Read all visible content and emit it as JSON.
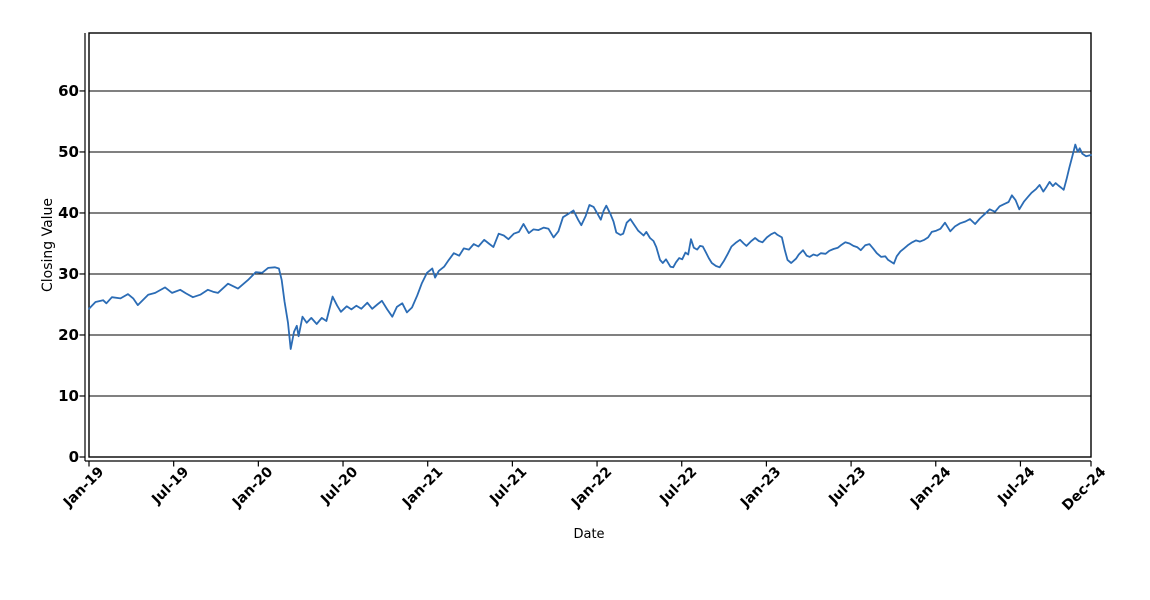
{
  "chart_data": {
    "type": "line",
    "title": "",
    "xlabel": "Date",
    "ylabel": "Closing Value",
    "grid": "horizontal",
    "legend": "none",
    "background_color": "#ffffff",
    "axis_color": "#000000",
    "line_color": "#2b6cb5",
    "ylim": [
      0,
      69.5
    ],
    "y_ticks": [
      0,
      10,
      20,
      30,
      40,
      50,
      60
    ],
    "xlim_months_from_jan2019": [
      0,
      71
    ],
    "x_ticks": [
      {
        "label": "Jan-19",
        "t": 0
      },
      {
        "label": "Jul-19",
        "t": 6
      },
      {
        "label": "Jan-20",
        "t": 12
      },
      {
        "label": "Jul-20",
        "t": 18
      },
      {
        "label": "Jan-21",
        "t": 24
      },
      {
        "label": "Jul-21",
        "t": 30
      },
      {
        "label": "Jan-22",
        "t": 36
      },
      {
        "label": "Jul-22",
        "t": 42
      },
      {
        "label": "Jan-23",
        "t": 48
      },
      {
        "label": "Jul-23",
        "t": 54
      },
      {
        "label": "Jan-24",
        "t": 60
      },
      {
        "label": "Jul-24",
        "t": 66
      },
      {
        "label": "Dec-24",
        "t": 71
      }
    ],
    "series": [
      {
        "name": "Closing Value",
        "points": [
          [
            "2019-01-01",
            24.3
          ],
          [
            "2019-01-15",
            25.4
          ],
          [
            "2019-02-01",
            25.7
          ],
          [
            "2019-02-08",
            25.2
          ],
          [
            "2019-02-20",
            26.2
          ],
          [
            "2019-03-08",
            26.0
          ],
          [
            "2019-03-24",
            26.7
          ],
          [
            "2019-04-05",
            26.0
          ],
          [
            "2019-04-15",
            24.9
          ],
          [
            "2019-05-07",
            26.6
          ],
          [
            "2019-05-22",
            26.9
          ],
          [
            "2019-06-13",
            27.8
          ],
          [
            "2019-06-28",
            26.9
          ],
          [
            "2019-07-15",
            27.4
          ],
          [
            "2019-07-28",
            26.8
          ],
          [
            "2019-08-12",
            26.2
          ],
          [
            "2019-08-28",
            26.6
          ],
          [
            "2019-09-14",
            27.4
          ],
          [
            "2019-09-25",
            27.1
          ],
          [
            "2019-10-05",
            26.9
          ],
          [
            "2019-10-27",
            28.4
          ],
          [
            "2019-11-18",
            27.6
          ],
          [
            "2019-12-09",
            29.0
          ],
          [
            "2019-12-26",
            30.3
          ],
          [
            "2020-01-09",
            30.2
          ],
          [
            "2020-01-22",
            31.0
          ],
          [
            "2020-02-06",
            31.1
          ],
          [
            "2020-02-15",
            30.9
          ],
          [
            "2020-02-21",
            29.0
          ],
          [
            "2020-02-27",
            25.5
          ],
          [
            "2020-03-04",
            22.0
          ],
          [
            "2020-03-10",
            17.7
          ],
          [
            "2020-03-17",
            20.5
          ],
          [
            "2020-03-23",
            21.5
          ],
          [
            "2020-03-27",
            19.8
          ],
          [
            "2020-04-05",
            23.0
          ],
          [
            "2020-04-14",
            22.0
          ],
          [
            "2020-04-24",
            22.8
          ],
          [
            "2020-05-05",
            21.8
          ],
          [
            "2020-05-16",
            22.8
          ],
          [
            "2020-05-26",
            22.3
          ],
          [
            "2020-06-09",
            26.3
          ],
          [
            "2020-06-19",
            24.8
          ],
          [
            "2020-06-27",
            23.8
          ],
          [
            "2020-07-09",
            24.7
          ],
          [
            "2020-07-19",
            24.2
          ],
          [
            "2020-07-30",
            24.8
          ],
          [
            "2020-08-10",
            24.3
          ],
          [
            "2020-08-23",
            25.3
          ],
          [
            "2020-09-03",
            24.3
          ],
          [
            "2020-09-14",
            25.0
          ],
          [
            "2020-09-24",
            25.6
          ],
          [
            "2020-10-05",
            24.2
          ],
          [
            "2020-10-16",
            23.0
          ],
          [
            "2020-10-26",
            24.6
          ],
          [
            "2020-11-07",
            25.2
          ],
          [
            "2020-11-17",
            23.7
          ],
          [
            "2020-11-28",
            24.5
          ],
          [
            "2020-12-09",
            26.5
          ],
          [
            "2020-12-19",
            28.5
          ],
          [
            "2020-12-30",
            30.2
          ],
          [
            "2021-01-11",
            30.9
          ],
          [
            "2021-01-17",
            29.4
          ],
          [
            "2021-01-25",
            30.5
          ],
          [
            "2021-02-06",
            31.2
          ],
          [
            "2021-02-16",
            32.3
          ],
          [
            "2021-02-27",
            33.4
          ],
          [
            "2021-03-08",
            33.0
          ],
          [
            "2021-03-18",
            34.2
          ],
          [
            "2021-03-29",
            34.0
          ],
          [
            "2021-04-09",
            34.9
          ],
          [
            "2021-04-19",
            34.5
          ],
          [
            "2021-05-01",
            35.6
          ],
          [
            "2021-05-11",
            35.0
          ],
          [
            "2021-05-21",
            34.4
          ],
          [
            "2021-06-02",
            36.6
          ],
          [
            "2021-06-13",
            36.3
          ],
          [
            "2021-06-23",
            35.7
          ],
          [
            "2021-07-04",
            36.6
          ],
          [
            "2021-07-15",
            36.9
          ],
          [
            "2021-07-25",
            38.2
          ],
          [
            "2021-08-06",
            36.7
          ],
          [
            "2021-08-16",
            37.3
          ],
          [
            "2021-08-27",
            37.2
          ],
          [
            "2021-09-08",
            37.6
          ],
          [
            "2021-09-18",
            37.4
          ],
          [
            "2021-09-29",
            36.0
          ],
          [
            "2021-10-09",
            37.0
          ],
          [
            "2021-10-19",
            39.3
          ],
          [
            "2021-11-01",
            39.9
          ],
          [
            "2021-11-11",
            40.4
          ],
          [
            "2021-11-21",
            38.9
          ],
          [
            "2021-11-28",
            38.0
          ],
          [
            "2021-12-07",
            39.5
          ],
          [
            "2021-12-15",
            41.3
          ],
          [
            "2021-12-24",
            41.0
          ],
          [
            "2021-12-30",
            40.2
          ],
          [
            "2022-01-09",
            38.9
          ],
          [
            "2022-01-15",
            40.3
          ],
          [
            "2022-01-21",
            41.2
          ],
          [
            "2022-01-30",
            39.8
          ],
          [
            "2022-02-06",
            38.6
          ],
          [
            "2022-02-12",
            36.8
          ],
          [
            "2022-02-21",
            36.4
          ],
          [
            "2022-02-27",
            36.6
          ],
          [
            "2022-03-04",
            38.4
          ],
          [
            "2022-03-12",
            39.0
          ],
          [
            "2022-03-21",
            38.0
          ],
          [
            "2022-03-29",
            37.1
          ],
          [
            "2022-04-10",
            36.3
          ],
          [
            "2022-04-16",
            36.9
          ],
          [
            "2022-04-24",
            35.9
          ],
          [
            "2022-05-01",
            35.4
          ],
          [
            "2022-05-07",
            34.4
          ],
          [
            "2022-05-15",
            32.3
          ],
          [
            "2022-05-21",
            31.8
          ],
          [
            "2022-05-28",
            32.4
          ],
          [
            "2022-06-07",
            31.2
          ],
          [
            "2022-06-13",
            31.1
          ],
          [
            "2022-06-19",
            31.9
          ],
          [
            "2022-06-26",
            32.6
          ],
          [
            "2022-07-02",
            32.4
          ],
          [
            "2022-07-09",
            33.5
          ],
          [
            "2022-07-15",
            33.2
          ],
          [
            "2022-07-21",
            35.7
          ],
          [
            "2022-07-27",
            34.3
          ],
          [
            "2022-08-04",
            34.0
          ],
          [
            "2022-08-10",
            34.6
          ],
          [
            "2022-08-16",
            34.5
          ],
          [
            "2022-08-23",
            33.5
          ],
          [
            "2022-08-29",
            32.6
          ],
          [
            "2022-09-05",
            31.8
          ],
          [
            "2022-09-14",
            31.3
          ],
          [
            "2022-09-22",
            31.1
          ],
          [
            "2022-10-01",
            32.2
          ],
          [
            "2022-10-09",
            33.3
          ],
          [
            "2022-10-17",
            34.5
          ],
          [
            "2022-10-26",
            35.1
          ],
          [
            "2022-11-05",
            35.6
          ],
          [
            "2022-11-13",
            35.0
          ],
          [
            "2022-11-19",
            34.6
          ],
          [
            "2022-11-28",
            35.3
          ],
          [
            "2022-12-07",
            35.9
          ],
          [
            "2022-12-15",
            35.4
          ],
          [
            "2022-12-23",
            35.2
          ],
          [
            "2023-01-02",
            36.0
          ],
          [
            "2023-01-11",
            36.5
          ],
          [
            "2023-01-19",
            36.8
          ],
          [
            "2023-01-25",
            36.4
          ],
          [
            "2023-02-04",
            36.0
          ],
          [
            "2023-02-10",
            34.0
          ],
          [
            "2023-02-16",
            32.3
          ],
          [
            "2023-02-24",
            31.8
          ],
          [
            "2023-03-04",
            32.5
          ],
          [
            "2023-03-10",
            33.2
          ],
          [
            "2023-03-19",
            33.9
          ],
          [
            "2023-03-27",
            33.0
          ],
          [
            "2023-04-03",
            32.8
          ],
          [
            "2023-04-11",
            33.2
          ],
          [
            "2023-04-19",
            33.0
          ],
          [
            "2023-04-27",
            33.4
          ],
          [
            "2023-05-07",
            33.3
          ],
          [
            "2023-05-15",
            33.8
          ],
          [
            "2023-05-24",
            34.1
          ],
          [
            "2023-06-03",
            34.3
          ],
          [
            "2023-06-11",
            34.8
          ],
          [
            "2023-06-19",
            35.2
          ],
          [
            "2023-06-28",
            35.0
          ],
          [
            "2023-07-06",
            34.6
          ],
          [
            "2023-07-14",
            34.4
          ],
          [
            "2023-07-22",
            33.9
          ],
          [
            "2023-08-01",
            34.7
          ],
          [
            "2023-08-10",
            34.9
          ],
          [
            "2023-08-18",
            34.2
          ],
          [
            "2023-08-26",
            33.4
          ],
          [
            "2023-09-05",
            32.8
          ],
          [
            "2023-09-14",
            32.9
          ],
          [
            "2023-09-20",
            32.3
          ],
          [
            "2023-10-02",
            31.7
          ],
          [
            "2023-10-08",
            32.9
          ],
          [
            "2023-10-16",
            33.7
          ],
          [
            "2023-10-24",
            34.2
          ],
          [
            "2023-11-03",
            34.8
          ],
          [
            "2023-11-11",
            35.2
          ],
          [
            "2023-11-19",
            35.5
          ],
          [
            "2023-11-28",
            35.3
          ],
          [
            "2023-12-07",
            35.6
          ],
          [
            "2023-12-15",
            36.0
          ],
          [
            "2023-12-23",
            36.9
          ],
          [
            "2024-01-02",
            37.1
          ],
          [
            "2024-01-11",
            37.4
          ],
          [
            "2024-01-21",
            38.4
          ],
          [
            "2024-02-02",
            37.0
          ],
          [
            "2024-02-12",
            37.8
          ],
          [
            "2024-02-23",
            38.3
          ],
          [
            "2024-03-04",
            38.6
          ],
          [
            "2024-03-14",
            39.0
          ],
          [
            "2024-03-25",
            38.2
          ],
          [
            "2024-04-05",
            39.1
          ],
          [
            "2024-04-15",
            39.8
          ],
          [
            "2024-04-26",
            40.6
          ],
          [
            "2024-05-07",
            40.2
          ],
          [
            "2024-05-17",
            41.1
          ],
          [
            "2024-05-28",
            41.5
          ],
          [
            "2024-06-06",
            41.8
          ],
          [
            "2024-06-13",
            42.9
          ],
          [
            "2024-06-21",
            42.1
          ],
          [
            "2024-06-29",
            40.6
          ],
          [
            "2024-07-09",
            41.9
          ],
          [
            "2024-07-17",
            42.6
          ],
          [
            "2024-07-25",
            43.3
          ],
          [
            "2024-08-04",
            43.9
          ],
          [
            "2024-08-12",
            44.6
          ],
          [
            "2024-08-20",
            43.5
          ],
          [
            "2024-08-27",
            44.3
          ],
          [
            "2024-09-03",
            45.1
          ],
          [
            "2024-09-10",
            44.4
          ],
          [
            "2024-09-16",
            44.9
          ],
          [
            "2024-09-22",
            44.5
          ],
          [
            "2024-09-29",
            44.1
          ],
          [
            "2024-10-03",
            43.8
          ],
          [
            "2024-10-09",
            45.5
          ],
          [
            "2024-10-15",
            47.4
          ],
          [
            "2024-10-22",
            49.4
          ],
          [
            "2024-10-28",
            51.2
          ],
          [
            "2024-11-03",
            50.0
          ],
          [
            "2024-11-07",
            50.6
          ],
          [
            "2024-11-13",
            49.7
          ],
          [
            "2024-11-21",
            49.3
          ],
          [
            "2024-12-01",
            49.5
          ]
        ]
      }
    ]
  }
}
